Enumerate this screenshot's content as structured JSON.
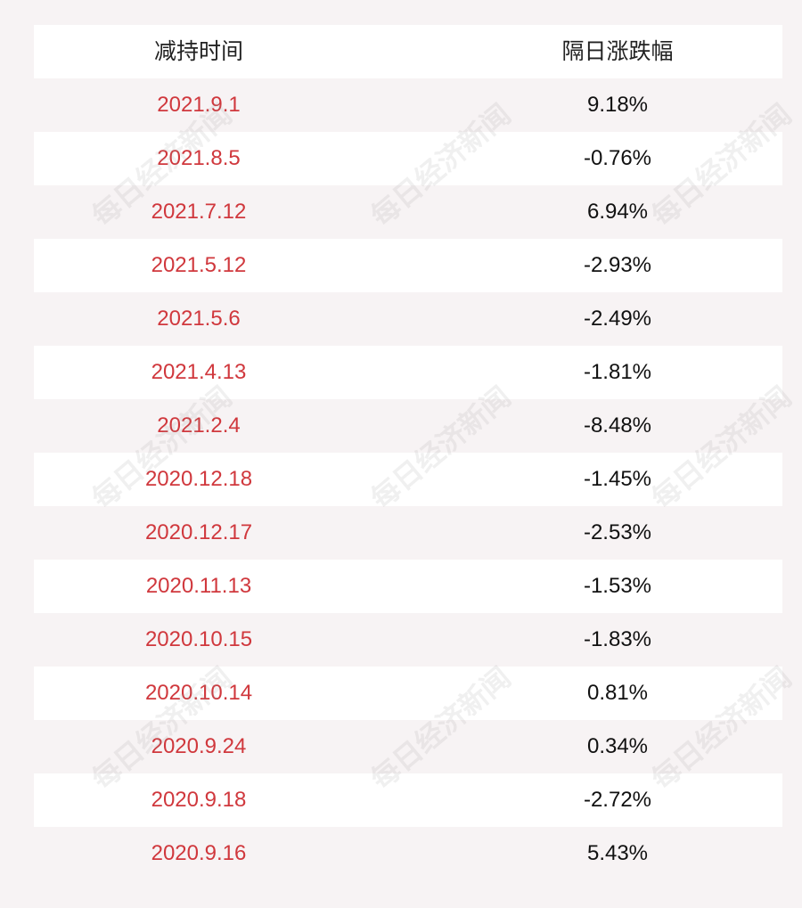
{
  "chart_data": {
    "type": "table",
    "columns": [
      "减持时间",
      "隔日涨跌幅"
    ],
    "rows": [
      [
        "2021.9.1",
        "9.18%"
      ],
      [
        "2021.8.5",
        "-0.76%"
      ],
      [
        "2021.7.12",
        "6.94%"
      ],
      [
        "2021.5.12",
        "-2.93%"
      ],
      [
        "2021.5.6",
        "-2.49%"
      ],
      [
        "2021.4.13",
        "-1.81%"
      ],
      [
        "2021.2.4",
        "-8.48%"
      ],
      [
        "2020.12.18",
        "-1.45%"
      ],
      [
        "2020.12.17",
        "-2.53%"
      ],
      [
        "2020.11.13",
        "-1.53%"
      ],
      [
        "2020.10.15",
        "-1.83%"
      ],
      [
        "2020.10.14",
        "0.81%"
      ],
      [
        "2020.9.24",
        "0.34%"
      ],
      [
        "2020.9.18",
        "-2.72%"
      ],
      [
        "2020.9.16",
        "5.43%"
      ]
    ]
  },
  "watermark": "每日经济新闻",
  "colors": {
    "background": "#f7f3f4",
    "stripe": "#ffffff",
    "date_text": "#d0383d",
    "value_text": "#111111"
  }
}
